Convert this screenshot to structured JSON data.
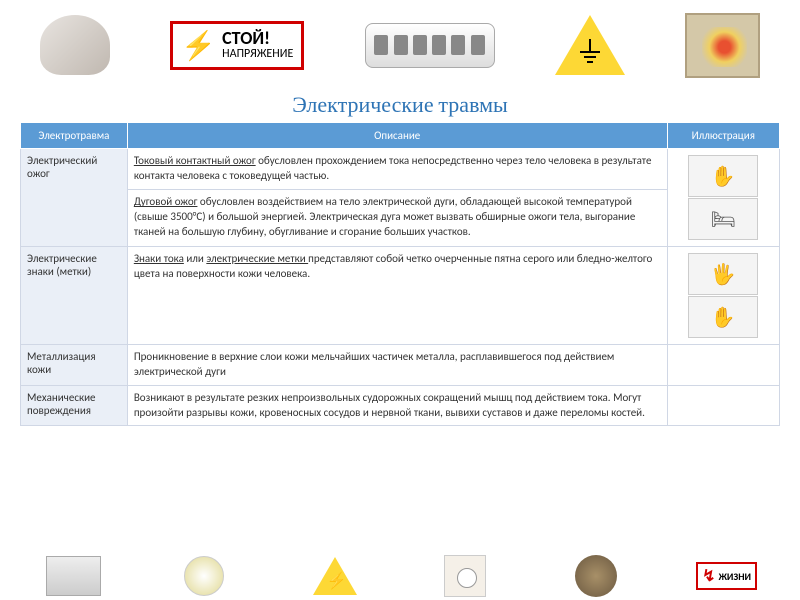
{
  "header": {
    "stop_label": "СТОЙ!",
    "stop_sub": "НАПРЯЖЕНИЕ"
  },
  "title": "Электрические травмы",
  "table": {
    "headers": [
      "Электротравма",
      "Описание",
      "Иллюстрация"
    ],
    "rows": [
      {
        "category": "Электрический ожог",
        "desc_parts": [
          {
            "u": "Токовый контактный ожог",
            "rest": " обусловлен прохождением тока непосредственно через тело человека в результате контакта человека с токоведущей частью."
          }
        ],
        "illus_count": 1
      },
      {
        "category": "",
        "desc_parts": [
          {
            "u": "Дуговой ожог",
            "rest": " обусловлен воздействием на тело электрической дуги, обладающей высокой температурой (свыше 3500°С) и большой энергией. Электрическая дуга может вызвать обширные ожоги тела, выгорание тканей на большую глубину, обугливание и сгорание больших участков."
          }
        ],
        "illus_count": 1
      },
      {
        "category": "Электрические знаки (метки)",
        "desc_parts": [
          {
            "u": "Знаки тока",
            "mid": " или ",
            "u2": "электрические метки ",
            "rest": "представляют собой четко очерченные пятна серого или бледно-желтого цвета на поверхности кожи человека."
          }
        ],
        "illus_count": 2
      },
      {
        "category": "Металлизация кожи",
        "desc_parts": [
          {
            "rest": "Проникновение в верхние слои кожи мельчайших частичек металла, расплавившегося под действием электрической дуги"
          }
        ],
        "illus_count": 0
      },
      {
        "category": "Механические повреждения",
        "desc_parts": [
          {
            "rest": "Возникают в результате резких непроизвольных судорожных сокращений мышц под действием тока. Могут произойти разрывы кожи, кровеносных сосудов и нервной ткани, вывихи суставов и даже переломы костей."
          }
        ],
        "illus_count": 0
      }
    ]
  },
  "footer": {
    "danger_text": "ЖИЗНИ"
  },
  "colors": {
    "header_bg": "#5b9bd5",
    "cat_bg": "#eaeff7",
    "title_color": "#2e74b5",
    "warn_yellow": "#fdd835",
    "danger_red": "#d00000"
  }
}
